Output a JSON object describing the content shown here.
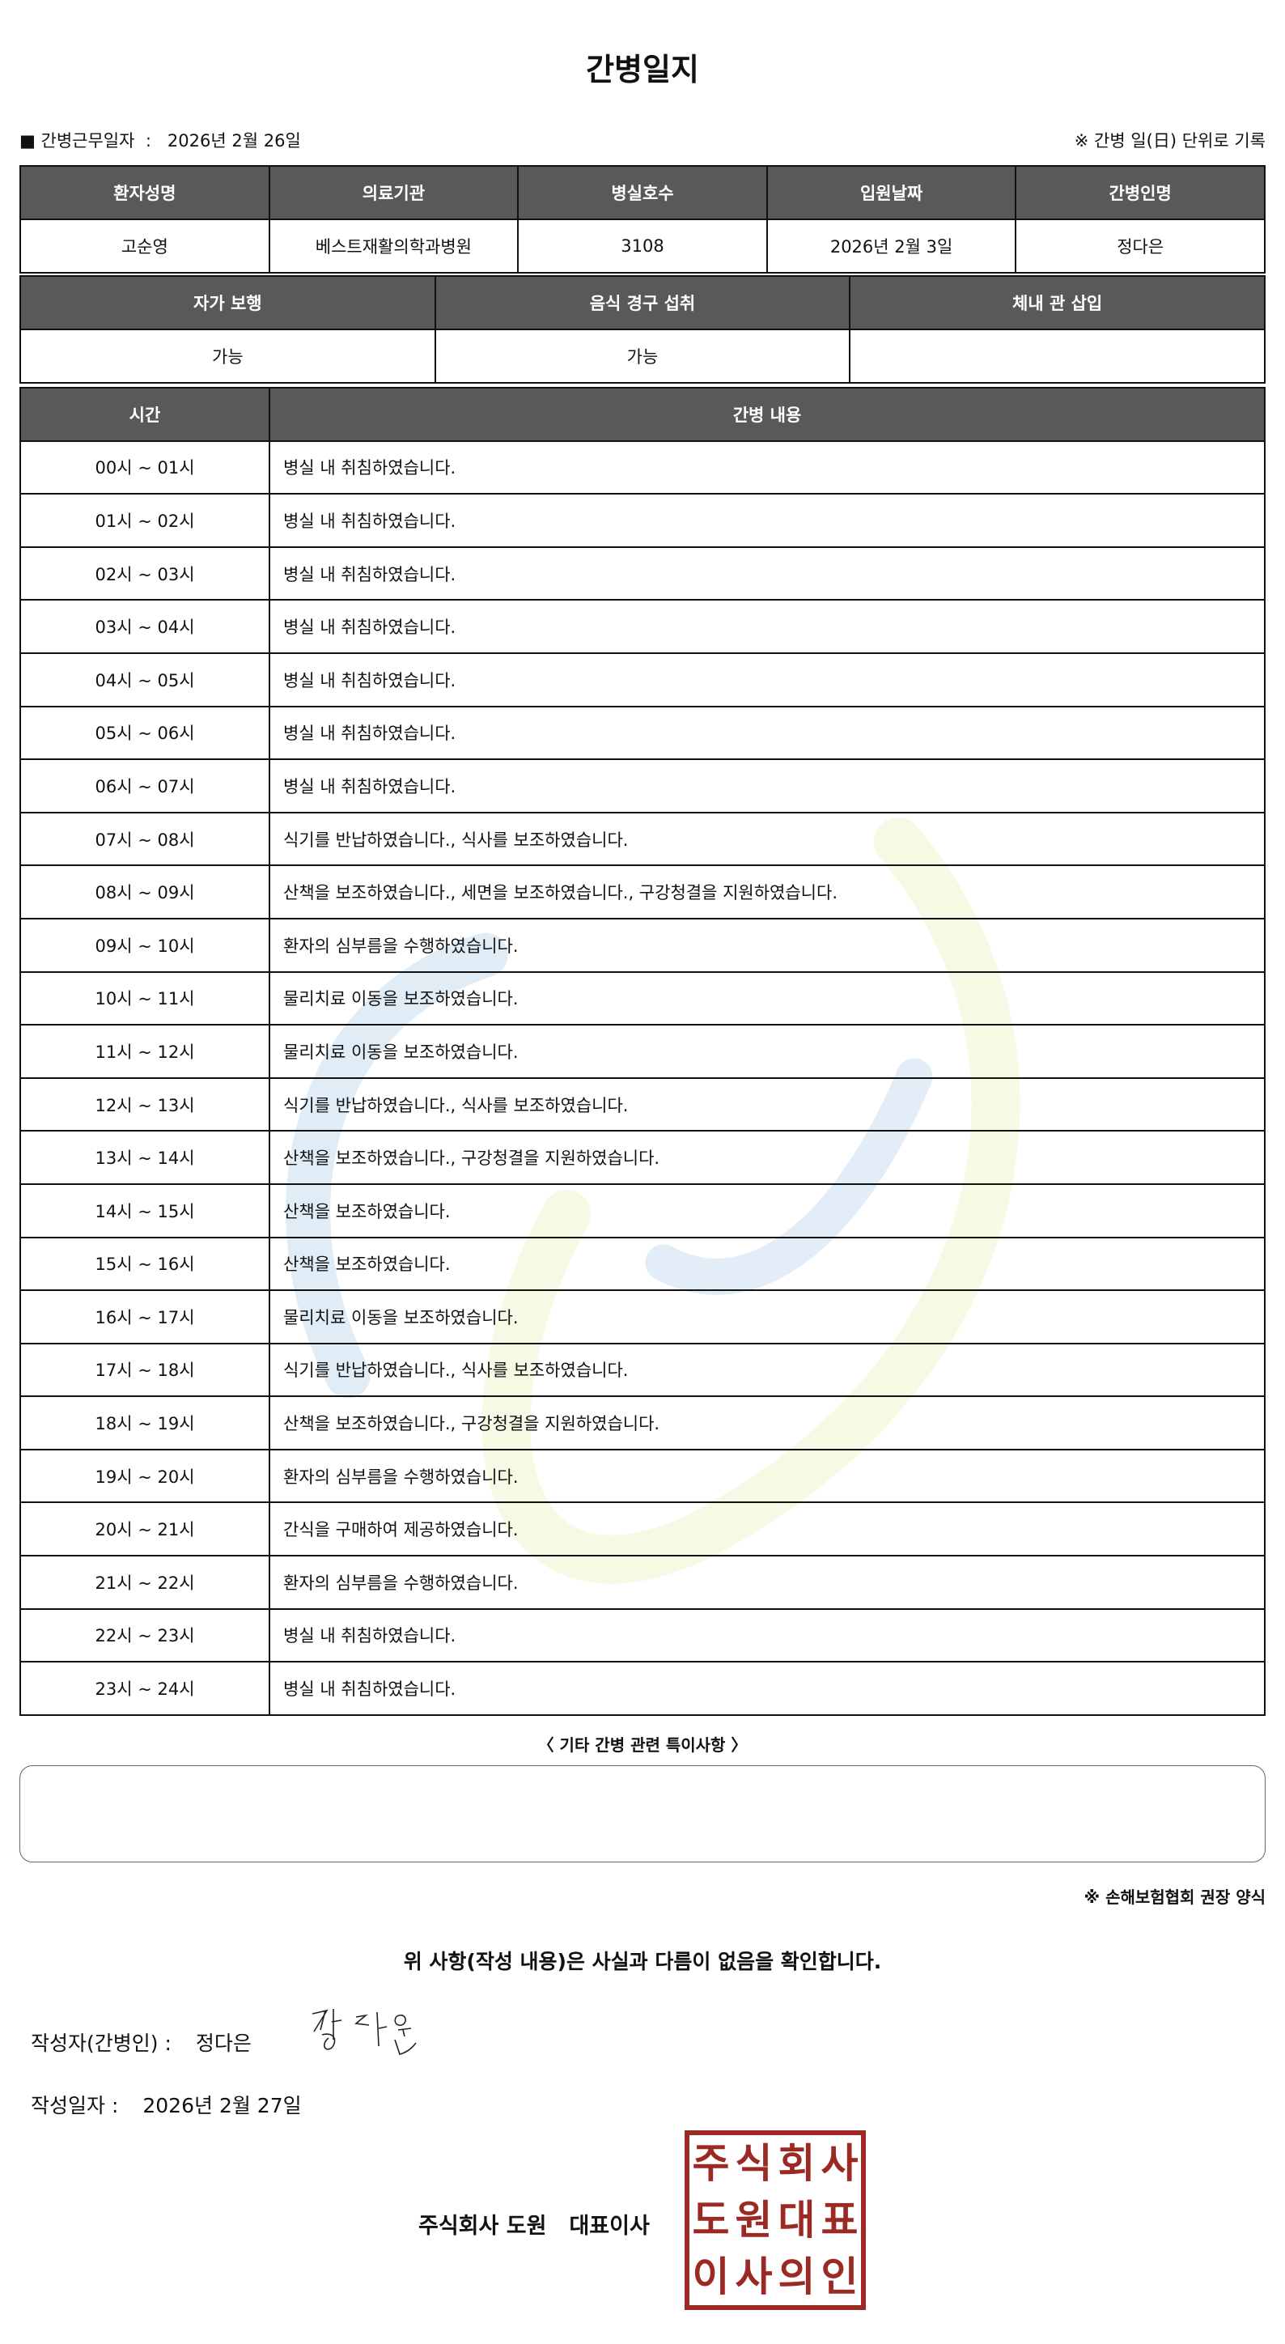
{
  "title": "간병일지",
  "work_date": {
    "marker": "■",
    "label": "간병근무일자",
    "separator": ":",
    "value": "2026년 2월 26일"
  },
  "unit_note": "※ 간병 일(日) 단위로 기록",
  "patient_table": {
    "headers": [
      "환자성명",
      "의료기관",
      "병실호수",
      "입원날짜",
      "간병인명"
    ],
    "values": [
      "고순영",
      "베스트재활의학과병원",
      "3108",
      "2026년 2월 3일",
      "정다은"
    ]
  },
  "status_table": {
    "headers": [
      "자가 보행",
      "음식 경구 섭취",
      "체내 관 삽입"
    ],
    "values": [
      "가능",
      "가능",
      ""
    ]
  },
  "log_table": {
    "headers": [
      "시간",
      "간병 내용"
    ],
    "rows": [
      {
        "time": "00시 ~ 01시",
        "content": "병실 내 취침하였습니다."
      },
      {
        "time": "01시 ~ 02시",
        "content": "병실 내 취침하였습니다."
      },
      {
        "time": "02시 ~ 03시",
        "content": "병실 내 취침하였습니다."
      },
      {
        "time": "03시 ~ 04시",
        "content": "병실 내 취침하였습니다."
      },
      {
        "time": "04시 ~ 05시",
        "content": "병실 내 취침하였습니다."
      },
      {
        "time": "05시 ~ 06시",
        "content": "병실 내 취침하였습니다."
      },
      {
        "time": "06시 ~ 07시",
        "content": "병실 내 취침하였습니다."
      },
      {
        "time": "07시 ~ 08시",
        "content": "식기를 반납하였습니다., 식사를 보조하였습니다."
      },
      {
        "time": "08시 ~ 09시",
        "content": "산책을 보조하였습니다., 세면을 보조하였습니다., 구강청결을 지원하였습니다."
      },
      {
        "time": "09시 ~ 10시",
        "content": "환자의 심부름을 수행하였습니다."
      },
      {
        "time": "10시 ~ 11시",
        "content": "물리치료 이동을 보조하였습니다."
      },
      {
        "time": "11시 ~ 12시",
        "content": "물리치료 이동을 보조하였습니다."
      },
      {
        "time": "12시 ~ 13시",
        "content": "식기를 반납하였습니다., 식사를 보조하였습니다."
      },
      {
        "time": "13시 ~ 14시",
        "content": "산책을 보조하였습니다., 구강청결을 지원하였습니다."
      },
      {
        "time": "14시 ~ 15시",
        "content": "산책을 보조하였습니다."
      },
      {
        "time": "15시 ~ 16시",
        "content": "산책을 보조하였습니다."
      },
      {
        "time": "16시 ~ 17시",
        "content": "물리치료 이동을 보조하였습니다."
      },
      {
        "time": "17시 ~ 18시",
        "content": "식기를 반납하였습니다., 식사를 보조하였습니다."
      },
      {
        "time": "18시 ~ 19시",
        "content": "산책을 보조하였습니다., 구강청결을 지원하였습니다."
      },
      {
        "time": "19시 ~ 20시",
        "content": "환자의 심부름을 수행하였습니다."
      },
      {
        "time": "20시 ~ 21시",
        "content": "간식을 구매하여 제공하였습니다."
      },
      {
        "time": "21시 ~ 22시",
        "content": "환자의 심부름을 수행하였습니다."
      },
      {
        "time": "22시 ~ 23시",
        "content": "병실 내 취침하였습니다."
      },
      {
        "time": "23시 ~ 24시",
        "content": "병실 내 취침하였습니다."
      }
    ]
  },
  "special_notes": {
    "title": "〈 기타 간병 관련 특이사항 〉",
    "value": ""
  },
  "association_note": "※ 손해보험협회 권장 양식",
  "confirmation": "위 사항(작성 내용)은 사실과 다름이 없음을 확인합니다.",
  "author": {
    "label": "작성자(간병인) :",
    "value": "정다은",
    "signature": "정다은"
  },
  "written_date": {
    "label": "작성일자 :",
    "value": "2026년 2월 27일"
  },
  "company": {
    "name": "주식회사 도원",
    "title": "대표이사"
  },
  "stamp": {
    "text": "주식회사도원대표이사의인",
    "chars": [
      "주",
      "식",
      "회",
      "사",
      "도",
      "원",
      "대",
      "표",
      "이",
      "사",
      "의",
      "인"
    ],
    "color": "#9b2a25"
  },
  "colors": {
    "header_bg": "#595959",
    "watermark_blue": "#dbe9f5",
    "watermark_yellow": "#f7f8e3"
  }
}
